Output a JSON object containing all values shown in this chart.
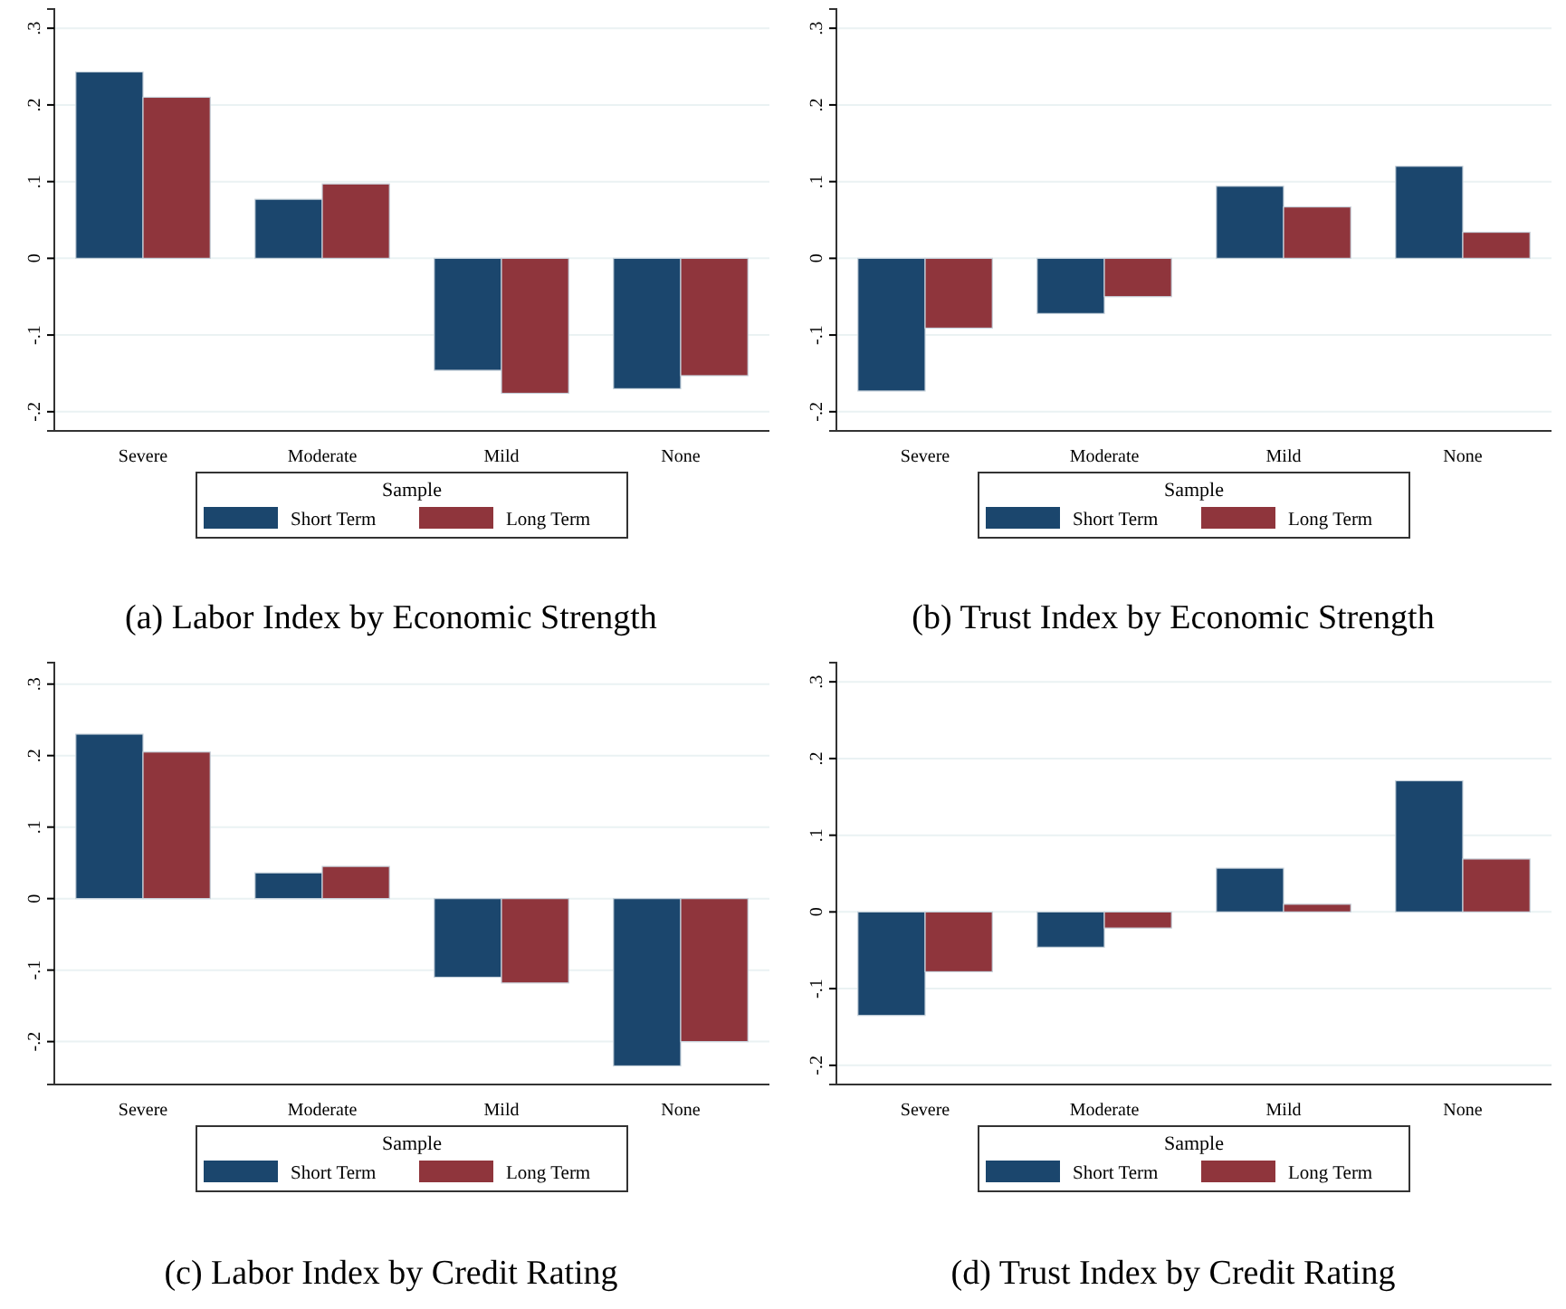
{
  "chart_data": [
    {
      "type": "bar",
      "title": "(a) Labor Index by Economic Strength",
      "categories": [
        "Severe",
        "Moderate",
        "Mild",
        "None"
      ],
      "legend_title": "Sample",
      "legend": "bottom",
      "grid": "y",
      "ylim": [
        -0.225,
        0.325
      ],
      "yticks": [
        {
          "value": -0.2,
          "label": "-.2"
        },
        {
          "value": -0.1,
          "label": "-.1"
        },
        {
          "value": 0,
          "label": "0"
        },
        {
          "value": 0.1,
          "label": ".1"
        },
        {
          "value": 0.2,
          "label": ".2"
        },
        {
          "value": 0.3,
          "label": ".3"
        }
      ],
      "series": [
        {
          "name": "Short Term",
          "color": "#1b466d",
          "values": [
            0.243,
            0.077,
            -0.146,
            -0.17
          ]
        },
        {
          "name": "Long Term",
          "color": "#8f353c",
          "values": [
            0.21,
            0.097,
            -0.176,
            -0.153
          ]
        }
      ]
    },
    {
      "type": "bar",
      "title": "(b) Trust Index by Economic Strength",
      "categories": [
        "Severe",
        "Moderate",
        "Mild",
        "None"
      ],
      "legend_title": "Sample",
      "legend": "bottom",
      "grid": "y",
      "ylim": [
        -0.225,
        0.325
      ],
      "yticks": [
        {
          "value": -0.2,
          "label": "-.2"
        },
        {
          "value": -0.1,
          "label": "-.1"
        },
        {
          "value": 0,
          "label": "0"
        },
        {
          "value": 0.1,
          "label": ".1"
        },
        {
          "value": 0.2,
          "label": ".2"
        },
        {
          "value": 0.3,
          "label": ".3"
        }
      ],
      "series": [
        {
          "name": "Short Term",
          "color": "#1b466d",
          "values": [
            -0.173,
            -0.072,
            0.094,
            0.12
          ]
        },
        {
          "name": "Long Term",
          "color": "#8f353c",
          "values": [
            -0.091,
            -0.05,
            0.067,
            0.034
          ]
        }
      ]
    },
    {
      "type": "bar",
      "title": "(c) Labor Index by Credit Rating",
      "categories": [
        "Severe",
        "Moderate",
        "Mild",
        "None"
      ],
      "legend_title": "Sample",
      "legend": "bottom",
      "grid": "y",
      "ylim": [
        -0.26,
        0.33
      ],
      "yticks": [
        {
          "value": -0.2,
          "label": "-.2"
        },
        {
          "value": -0.1,
          "label": "-.1"
        },
        {
          "value": 0,
          "label": "0"
        },
        {
          "value": 0.1,
          "label": ".1"
        },
        {
          "value": 0.2,
          "label": ".2"
        },
        {
          "value": 0.3,
          "label": ".3"
        }
      ],
      "series": [
        {
          "name": "Short Term",
          "color": "#1b466d",
          "values": [
            0.23,
            0.036,
            -0.11,
            -0.234
          ]
        },
        {
          "name": "Long Term",
          "color": "#8f353c",
          "values": [
            0.205,
            0.045,
            -0.118,
            -0.2
          ]
        }
      ]
    },
    {
      "type": "bar",
      "title": "(d) Trust Index by Credit Rating",
      "categories": [
        "Severe",
        "Moderate",
        "Mild",
        "None"
      ],
      "legend_title": "Sample",
      "legend": "bottom",
      "grid": "y",
      "ylim": [
        -0.225,
        0.325
      ],
      "yticks": [
        {
          "value": -0.2,
          "label": "-.2"
        },
        {
          "value": -0.1,
          "label": "-.1"
        },
        {
          "value": 0,
          "label": "0"
        },
        {
          "value": 0.1,
          "label": ".1"
        },
        {
          "value": 0.2,
          "label": ".2"
        },
        {
          "value": 0.3,
          "label": ".3"
        }
      ],
      "series": [
        {
          "name": "Short Term",
          "color": "#1b466d",
          "values": [
            -0.135,
            -0.046,
            0.057,
            0.171
          ]
        },
        {
          "name": "Long Term",
          "color": "#8f353c",
          "values": [
            -0.078,
            -0.021,
            0.01,
            0.069
          ]
        }
      ]
    }
  ]
}
